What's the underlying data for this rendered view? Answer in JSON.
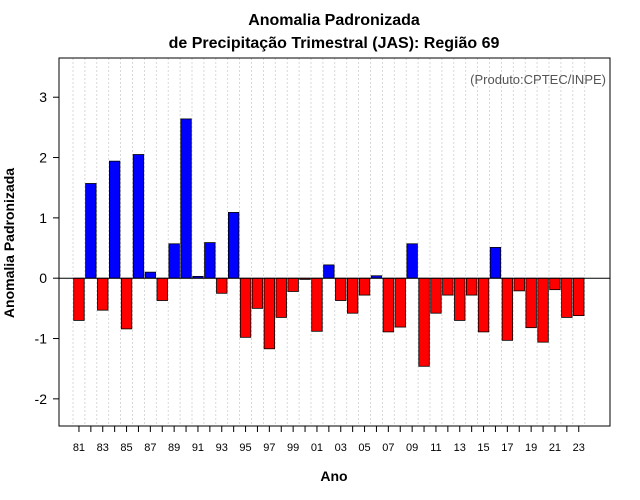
{
  "chart_data": {
    "type": "bar",
    "title": "Anomalia Padronizada",
    "subtitle": "de Precipitação Trimestral (JAS): Região 69",
    "xlabel": "Ano",
    "ylabel": "Anomalia Padronizada",
    "annotation": "(Produto:CPTEC/INPE)",
    "ylim": [
      -2.45,
      3.65
    ],
    "yticks": [
      -2,
      -1,
      0,
      1,
      2,
      3
    ],
    "ytick_labels": [
      "-2",
      "-1",
      "0",
      "1",
      "2",
      "3"
    ],
    "xtick_labels": [
      "81",
      "83",
      "85",
      "87",
      "89",
      "91",
      "93",
      "95",
      "97",
      "99",
      "01",
      "03",
      "05",
      "07",
      "09",
      "11",
      "13",
      "15",
      "17",
      "19",
      "21",
      "23"
    ],
    "grid": true,
    "positive_color": "#0000ff",
    "negative_color": "#ff0000",
    "categories": [
      "1981",
      "1982",
      "1983",
      "1984",
      "1985",
      "1986",
      "1987",
      "1988",
      "1989",
      "1990",
      "1991",
      "1992",
      "1993",
      "1994",
      "1995",
      "1996",
      "1997",
      "1998",
      "1999",
      "2000",
      "2001",
      "2002",
      "2003",
      "2004",
      "2005",
      "2006",
      "2007",
      "2008",
      "2009",
      "2010",
      "2011",
      "2012",
      "2013",
      "2014",
      "2015",
      "2016",
      "2017",
      "2018",
      "2019",
      "2020",
      "2021",
      "2022",
      "2023"
    ],
    "values": [
      -0.7,
      1.57,
      -0.53,
      1.94,
      -0.84,
      2.05,
      0.1,
      -0.37,
      0.57,
      2.64,
      0.03,
      0.59,
      -0.25,
      1.09,
      -0.98,
      -0.5,
      -1.17,
      -0.65,
      -0.22,
      -0.02,
      -0.88,
      0.22,
      -0.37,
      -0.58,
      -0.28,
      0.04,
      -0.89,
      -0.81,
      0.57,
      -1.46,
      -0.58,
      -0.28,
      -0.7,
      -0.28,
      -0.89,
      0.51,
      -1.03,
      -0.21,
      -0.82,
      -1.06,
      -0.19,
      -0.65,
      -0.62
    ]
  }
}
